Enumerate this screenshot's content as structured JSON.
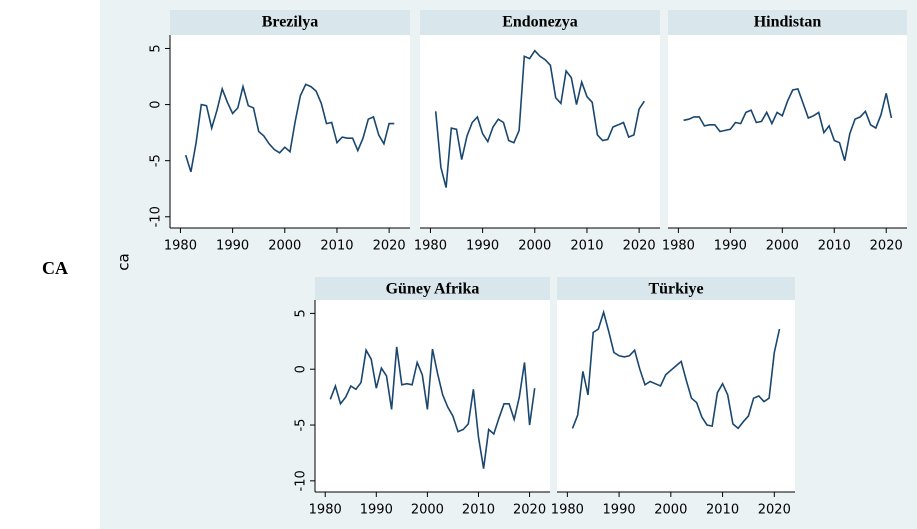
{
  "label": "CA",
  "ylabel": "ca",
  "chart_data": [
    {
      "type": "line",
      "title": "Brezilya",
      "color": "#1a476f",
      "x": [
        1981,
        1982,
        1983,
        1984,
        1985,
        1986,
        1987,
        1988,
        1989,
        1990,
        1991,
        1992,
        1993,
        1994,
        1995,
        1996,
        1997,
        1998,
        1999,
        2000,
        2001,
        2002,
        2003,
        2004,
        2005,
        2006,
        2007,
        2008,
        2009,
        2010,
        2011,
        2012,
        2013,
        2014,
        2015,
        2016,
        2017,
        2018,
        2019,
        2020,
        2021
      ],
      "values": [
        -4.5,
        -6,
        -3.4,
        0,
        -0.1,
        -2.1,
        -0.5,
        1.4,
        0.2,
        -0.8,
        -0.3,
        1.6,
        -0.1,
        -0.3,
        -2.4,
        -2.8,
        -3.5,
        -4,
        -4.3,
        -3.8,
        -4.2,
        -1.5,
        0.8,
        1.8,
        1.6,
        1.2,
        0.1,
        -1.7,
        -1.6,
        -3.4,
        -2.9,
        -3,
        -3,
        -4.1,
        -3,
        -1.3,
        -1.1,
        -2.7,
        -3.5,
        -1.7,
        -1.7
      ],
      "xlim": [
        1978,
        2024
      ],
      "xticks": [
        1980,
        1990,
        2000,
        2010,
        2020
      ],
      "ylim": [
        -11,
        6.2
      ],
      "yticks": [
        5,
        0,
        -5,
        -10
      ]
    },
    {
      "type": "line",
      "title": "Endonezya",
      "color": "#1a476f",
      "x": [
        1981,
        1982,
        1983,
        1984,
        1985,
        1986,
        1987,
        1988,
        1989,
        1990,
        1991,
        1992,
        1993,
        1994,
        1995,
        1996,
        1997,
        1998,
        1999,
        2000,
        2001,
        2002,
        2003,
        2004,
        2005,
        2006,
        2007,
        2008,
        2009,
        2010,
        2011,
        2012,
        2013,
        2014,
        2015,
        2016,
        2017,
        2018,
        2019,
        2020,
        2021
      ],
      "values": [
        -0.6,
        -5.6,
        -7.4,
        -2.1,
        -2.2,
        -4.9,
        -2.8,
        -1.6,
        -1.1,
        -2.6,
        -3.3,
        -2,
        -1.3,
        -1.6,
        -3.2,
        -3.4,
        -2.3,
        4.3,
        4.1,
        4.8,
        4.3,
        4,
        3.5,
        0.6,
        0.1,
        3,
        2.4,
        0,
        2,
        0.7,
        0.2,
        -2.7,
        -3.2,
        -3.1,
        -2,
        -1.8,
        -1.6,
        -2.9,
        -2.7,
        -0.4,
        0.3
      ],
      "xlim": [
        1978,
        2024
      ],
      "xticks": [
        1980,
        1990,
        2000,
        2010,
        2020
      ],
      "ylim": [
        -11,
        6.2
      ]
    },
    {
      "type": "line",
      "title": "Hindistan",
      "color": "#1a476f",
      "x": [
        1981,
        1982,
        1983,
        1984,
        1985,
        1986,
        1987,
        1988,
        1989,
        1990,
        1991,
        1992,
        1993,
        1994,
        1995,
        1996,
        1997,
        1998,
        1999,
        2000,
        2001,
        2002,
        2003,
        2004,
        2005,
        2006,
        2007,
        2008,
        2009,
        2010,
        2011,
        2012,
        2013,
        2014,
        2015,
        2016,
        2017,
        2018,
        2019,
        2020,
        2021
      ],
      "values": [
        -1.4,
        -1.3,
        -1.1,
        -1.1,
        -1.9,
        -1.8,
        -1.8,
        -2.4,
        -2.3,
        -2.2,
        -1.6,
        -1.7,
        -0.7,
        -0.5,
        -1.6,
        -1.5,
        -0.7,
        -1.7,
        -0.7,
        -1,
        0.3,
        1.3,
        1.4,
        0.1,
        -1.2,
        -1,
        -0.7,
        -2.5,
        -1.9,
        -3.2,
        -3.4,
        -5,
        -2.6,
        -1.3,
        -1.1,
        -0.6,
        -1.8,
        -2.1,
        -0.9,
        1,
        -1.2
      ],
      "xlim": [
        1978,
        2024
      ],
      "xticks": [
        1980,
        1990,
        2000,
        2010,
        2020
      ],
      "ylim": [
        -11,
        6.2
      ]
    },
    {
      "type": "line",
      "title": "Güney Afrika",
      "color": "#1a476f",
      "x": [
        1981,
        1982,
        1983,
        1984,
        1985,
        1986,
        1987,
        1988,
        1989,
        1990,
        1991,
        1992,
        1993,
        1994,
        1995,
        1996,
        1997,
        1998,
        1999,
        2000,
        2001,
        2002,
        2003,
        2004,
        2005,
        2006,
        2007,
        2008,
        2009,
        2010,
        2011,
        2012,
        2013,
        2014,
        2015,
        2016,
        2017,
        2018,
        2019,
        2020,
        2021
      ],
      "values": [
        -2.7,
        -1.5,
        -3.1,
        -2.5,
        -1.5,
        -1.8,
        -1.2,
        1.7,
        0.9,
        -1.7,
        0.1,
        -0.6,
        -3.6,
        2,
        -1.4,
        -1.3,
        -1.4,
        0.6,
        -0.5,
        -3.6,
        1.8,
        -0.4,
        -2.3,
        -3.4,
        -4.2,
        -5.6,
        -5.4,
        -4.9,
        -1.8,
        -6.1,
        -8.9,
        -5.4,
        -5.8,
        -4.4,
        -3.1,
        -3.1,
        -4.5,
        -2.5,
        0.6,
        -5,
        -1.7
      ],
      "xlim": [
        1978,
        2024
      ],
      "xticks": [
        1980,
        1990,
        2000,
        2010,
        2020
      ],
      "ylim": [
        -11,
        6.2
      ],
      "yticks": [
        5,
        0,
        -5,
        -10
      ]
    },
    {
      "type": "line",
      "title": "Türkiye",
      "color": "#1a476f",
      "x": [
        1981,
        1982,
        1983,
        1984,
        1985,
        1986,
        1987,
        1988,
        1989,
        1990,
        1991,
        1992,
        1993,
        1994,
        1995,
        1996,
        1997,
        1998,
        1999,
        2000,
        2001,
        2002,
        2003,
        2004,
        2005,
        2006,
        2007,
        2008,
        2009,
        2010,
        2011,
        2012,
        2013,
        2014,
        2015,
        2016,
        2017,
        2018,
        2019,
        2020,
        2021
      ],
      "values": [
        -5.3,
        -4.1,
        -0.2,
        -2.3,
        3.3,
        3.6,
        5.1,
        3.4,
        1.5,
        1.2,
        1.1,
        1.2,
        1.7,
        0,
        -1.4,
        -1.1,
        -1.3,
        -1.5,
        -0.5,
        -0.1,
        0.3,
        0.7,
        -1,
        -2.6,
        -3,
        -4.3,
        -5,
        -5.1,
        -2.1,
        -1.3,
        -2.3,
        -4.9,
        -5.3,
        -4.7,
        -4.2,
        -2.6,
        -2.4,
        -2.9,
        -2.6,
        1.5,
        3.6
      ],
      "xlim": [
        1978,
        2024
      ],
      "xticks": [
        1980,
        1990,
        2000,
        2010,
        2020
      ],
      "ylim": [
        -11,
        6.2
      ]
    }
  ]
}
